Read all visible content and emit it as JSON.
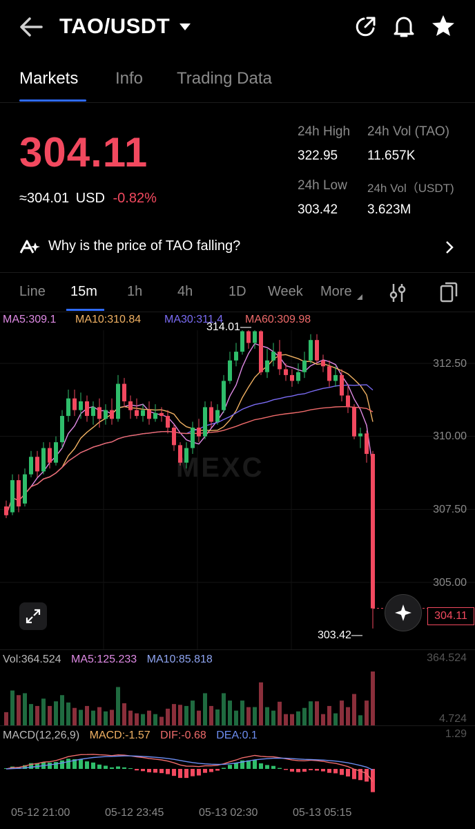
{
  "header": {
    "title": "TAO/USDT",
    "icons": [
      "back-arrow-icon",
      "caret-down-icon",
      "share-icon",
      "bell-icon",
      "star-icon"
    ]
  },
  "tabs": [
    {
      "label": "Markets",
      "active": true
    },
    {
      "label": "Info",
      "active": false
    },
    {
      "label": "Trading Data",
      "active": false
    }
  ],
  "ticker": {
    "price": "304.11",
    "usd": "≈304.01",
    "usd_unit": "USD",
    "change": "-0.82%",
    "high_label": "24h High",
    "high": "322.95",
    "low_label": "24h Low",
    "low": "303.42",
    "vol_tao_label": "24h Vol (TAO)",
    "vol_tao": "11.657K",
    "vol_usdt_label": "24h Vol（USDT)",
    "vol_usdt": "3.623M"
  },
  "insight": {
    "text": "Why is the price of TAO falling?"
  },
  "timeframes": {
    "items": [
      "Line",
      "15m",
      "1h",
      "4h",
      "1D",
      "Week",
      "More"
    ],
    "active": "15m"
  },
  "colors": {
    "up": "#2fbe6b",
    "down": "#f2495f",
    "ma5": "#e08be6",
    "ma10": "#f2b263",
    "ma30": "#7b6cf5",
    "ma60": "#f06b6b",
    "accent": "#2f6bff"
  },
  "main_chart": {
    "legend": {
      "ma5": "MA5:309.1",
      "ma10": "MA10:310.84",
      "ma30": "MA30:311.4",
      "ma60": "MA60:309.98"
    },
    "y_ticks": [
      "312.50",
      "310.00",
      "307.50",
      "305.00"
    ],
    "high_mark": "314.01",
    "low_mark": "303.42",
    "current": "304.11",
    "watermark": "MEXC"
  },
  "volume": {
    "legend": {
      "vol": "Vol:364.524",
      "ma5": "MA5:125.233",
      "ma10": "MA10:85.818"
    },
    "max": "364.524",
    "min": "4.724"
  },
  "macd": {
    "legend": {
      "name": "MACD(12,26,9)",
      "macd": "MACD:-1.57",
      "dif": "DIF:-0.68",
      "dea": "DEA:0.1"
    },
    "max": "1.29"
  },
  "x_labels": [
    "05-12 21:00",
    "05-12 23:45",
    "05-13 02:30",
    "05-13 05:15"
  ],
  "chart_data": {
    "type": "candlestick",
    "y_axis_ticks": [
      305,
      307.5,
      310,
      312.5
    ],
    "candles": [
      [
        307.6,
        307.3,
        307.8,
        307.2
      ],
      [
        307.4,
        308.5,
        308.7,
        307.3
      ],
      [
        308.5,
        307.6,
        308.7,
        307.4
      ],
      [
        307.7,
        308.7,
        308.9,
        307.6
      ],
      [
        308.7,
        309.3,
        309.5,
        308.6
      ],
      [
        309.3,
        308.8,
        309.5,
        308.6
      ],
      [
        308.8,
        309.6,
        309.8,
        308.7
      ],
      [
        309.6,
        309.1,
        309.8,
        308.9
      ],
      [
        309.1,
        309.8,
        310.0,
        309.0
      ],
      [
        309.8,
        310.7,
        310.9,
        309.6
      ],
      [
        310.7,
        311.3,
        311.6,
        310.5
      ],
      [
        311.3,
        310.9,
        311.6,
        310.7
      ],
      [
        310.9,
        311.2,
        311.5,
        310.6
      ],
      [
        311.2,
        310.7,
        311.4,
        310.5
      ],
      [
        310.7,
        311.0,
        311.2,
        310.4
      ],
      [
        311.0,
        310.6,
        311.3,
        310.3
      ],
      [
        310.6,
        310.9,
        311.1,
        310.4
      ],
      [
        310.9,
        310.6,
        311.3,
        310.4
      ],
      [
        310.6,
        311.8,
        312.1,
        310.5
      ],
      [
        311.8,
        311.2,
        312.0,
        311.0
      ],
      [
        311.2,
        310.9,
        311.4,
        310.6
      ],
      [
        310.9,
        310.7,
        311.3,
        310.6
      ],
      [
        310.7,
        310.9,
        311.1,
        310.5
      ],
      [
        310.9,
        310.6,
        311.2,
        310.4
      ],
      [
        310.6,
        310.8,
        311.1,
        310.5
      ],
      [
        310.8,
        310.7,
        311.0,
        310.5
      ],
      [
        310.7,
        310.3,
        310.9,
        310.1
      ],
      [
        310.3,
        309.7,
        310.4,
        309.5
      ],
      [
        309.7,
        309.1,
        309.8,
        309.0
      ],
      [
        309.1,
        309.6,
        309.8,
        308.9
      ],
      [
        309.6,
        310.3,
        310.5,
        309.4
      ],
      [
        310.3,
        310.0,
        310.6,
        309.8
      ],
      [
        310.0,
        311.0,
        311.2,
        309.9
      ],
      [
        311.0,
        310.5,
        311.2,
        310.3
      ],
      [
        310.5,
        310.9,
        311.1,
        310.4
      ],
      [
        310.9,
        311.9,
        312.1,
        310.8
      ],
      [
        311.9,
        312.6,
        312.9,
        311.8
      ],
      [
        312.6,
        312.9,
        313.2,
        312.4
      ],
      [
        312.9,
        313.6,
        313.9,
        312.8
      ],
      [
        313.6,
        313.2,
        314.0,
        313.0
      ],
      [
        313.2,
        313.6,
        314.01,
        313.0
      ],
      [
        313.6,
        312.2,
        313.8,
        312.1
      ],
      [
        312.2,
        312.6,
        313.0,
        312.0
      ],
      [
        312.6,
        312.9,
        313.2,
        312.4
      ],
      [
        312.9,
        312.3,
        313.3,
        312.1
      ],
      [
        312.3,
        312.1,
        312.5,
        311.9
      ],
      [
        312.1,
        311.9,
        312.3,
        311.7
      ],
      [
        311.9,
        312.2,
        312.5,
        311.8
      ],
      [
        312.2,
        312.6,
        312.9,
        312.0
      ],
      [
        312.6,
        313.3,
        313.5,
        312.5
      ],
      [
        313.3,
        312.6,
        313.5,
        312.5
      ],
      [
        312.6,
        312.4,
        312.8,
        312.2
      ],
      [
        312.4,
        311.9,
        312.6,
        311.7
      ],
      [
        311.9,
        312.1,
        312.4,
        311.7
      ],
      [
        312.1,
        311.4,
        312.3,
        311.2
      ],
      [
        311.4,
        311.0,
        311.8,
        310.8
      ],
      [
        311.0,
        310.0,
        311.1,
        309.9
      ],
      [
        310.0,
        310.1,
        310.3,
        309.6
      ],
      [
        310.1,
        309.4,
        310.2,
        309.1
      ],
      [
        309.4,
        304.11,
        309.5,
        303.42
      ]
    ],
    "title": "",
    "xlabel": "",
    "ylabel": ""
  }
}
